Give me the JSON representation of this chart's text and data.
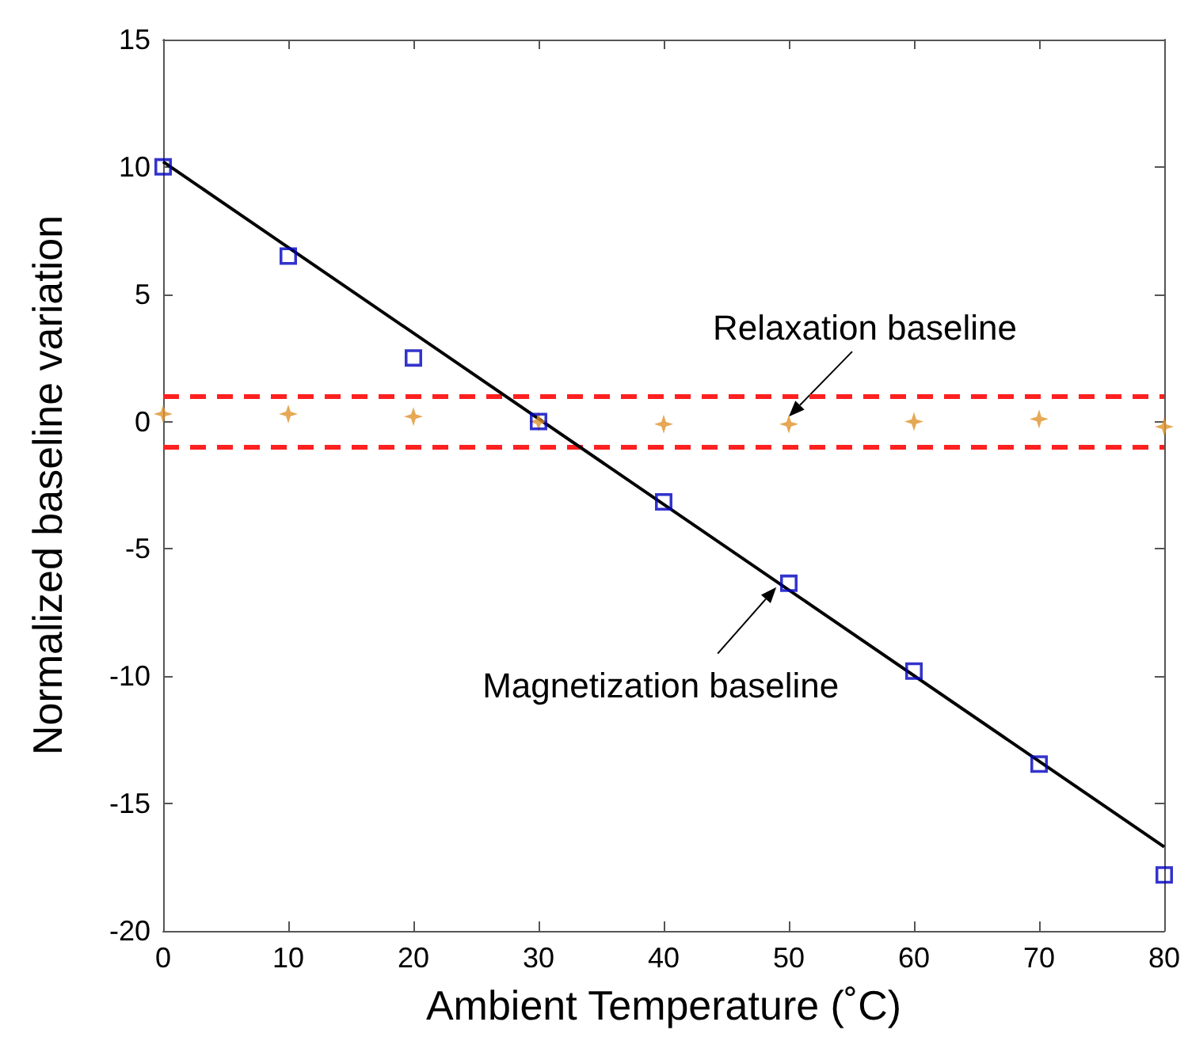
{
  "chart_data": {
    "type": "scatter",
    "xlabel": "Ambient Temperature (˚C)",
    "ylabel": "Normalized baseline variation",
    "x": [
      0,
      10,
      20,
      30,
      40,
      50,
      60,
      70,
      80
    ],
    "series": [
      {
        "color": "#0000c0",
        "marker": "square",
        "values": [
          10,
          6.5,
          2.5,
          0,
          -3.15,
          -6.35,
          -9.8,
          -13.45,
          -17.8
        ]
      },
      {
        "color": "#e0922a",
        "marker": "star",
        "values": [
          0.3,
          0.3,
          0.2,
          0,
          -0.1,
          -0.1,
          0,
          0.1,
          -0.2
        ]
      },
      {
        "type": "line",
        "color": "#000000",
        "marker": "none",
        "x": [
          0,
          80
        ],
        "values": [
          10.2,
          -16.7
        ]
      }
    ],
    "ref_lines": [
      {
        "axis": "y",
        "value": 1,
        "color": "#ff2020",
        "line_style": "dashed"
      },
      {
        "axis": "y",
        "value": -1,
        "color": "#ff2020",
        "line_style": "dashed"
      }
    ],
    "annotations": [
      {
        "text": "Relaxation baseline",
        "x": 50,
        "y": 0.2
      },
      {
        "text": "Magnetization baseline",
        "x": 49,
        "y": -6.5
      }
    ],
    "xlim": [
      0,
      80
    ],
    "xticks": [
      0,
      10,
      20,
      30,
      40,
      50,
      60,
      70,
      80
    ],
    "ylim": [
      -20,
      15
    ],
    "yticks": [
      -20,
      -15,
      -10,
      -5,
      0,
      5,
      10,
      15
    ],
    "grid": false
  }
}
